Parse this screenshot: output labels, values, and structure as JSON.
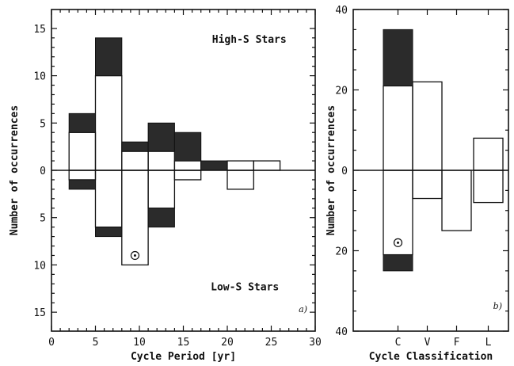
{
  "chart_data": [
    {
      "panel": "a)",
      "type": "bar",
      "xlabel": "Cycle Period [yr]",
      "ylabel": "Number of occurrences",
      "xlim": [
        0,
        30
      ],
      "ylim": [
        -17,
        17
      ],
      "x_ticks": [
        0,
        5,
        10,
        15,
        20,
        25,
        30
      ],
      "y_ticks": [
        {
          "value": 15,
          "label": "15"
        },
        {
          "value": 10,
          "label": "10"
        },
        {
          "value": 5,
          "label": "5"
        },
        {
          "value": 0,
          "label": "0"
        },
        {
          "value": -5,
          "label": "5"
        },
        {
          "value": -10,
          "label": "10"
        },
        {
          "value": -15,
          "label": "15"
        }
      ],
      "annotations": [
        "High-S Stars",
        "Low-S Stars"
      ],
      "bin_edges": [
        2,
        5,
        8,
        11,
        14,
        17,
        20,
        23,
        26
      ],
      "series": [
        {
          "group": "High-S Stars",
          "style": "open",
          "values": [
            4,
            10,
            2,
            2,
            1,
            0,
            1,
            1
          ]
        },
        {
          "group": "High-S Stars",
          "style": "filled",
          "values": [
            2,
            4,
            1,
            3,
            3,
            1,
            0,
            0
          ]
        },
        {
          "group": "Low-S Stars",
          "style": "open",
          "values": [
            -1,
            -6,
            -10,
            -4,
            -1,
            0,
            -2,
            0
          ]
        },
        {
          "group": "Low-S Stars",
          "style": "filled",
          "values": [
            -1,
            -1,
            0,
            -2,
            0,
            0,
            0,
            0
          ]
        }
      ],
      "sun_marker": {
        "x": 9.5,
        "y": -9
      }
    },
    {
      "panel": "b)",
      "type": "bar",
      "xlabel": "Cycle Classification",
      "ylabel": "Number of occurrences",
      "categories": [
        "C",
        "V",
        "F",
        "L"
      ],
      "ylim": [
        -40,
        40
      ],
      "y_ticks": [
        {
          "value": 40,
          "label": "40"
        },
        {
          "value": 20,
          "label": "20"
        },
        {
          "value": 0,
          "label": "0"
        },
        {
          "value": -20,
          "label": "20"
        },
        {
          "value": -40,
          "label": "40"
        }
      ],
      "series": [
        {
          "group": "High-S Stars",
          "style": "open",
          "values": [
            21,
            22,
            0,
            8
          ]
        },
        {
          "group": "High-S Stars",
          "style": "filled",
          "values": [
            14,
            0,
            0,
            0
          ]
        },
        {
          "group": "Low-S Stars",
          "style": "open",
          "values": [
            -21,
            -7,
            -15,
            -8
          ]
        },
        {
          "group": "Low-S Stars",
          "style": "filled",
          "values": [
            -4,
            0,
            0,
            0
          ]
        }
      ],
      "sun_marker": {
        "category": "C",
        "y": -18
      }
    }
  ]
}
